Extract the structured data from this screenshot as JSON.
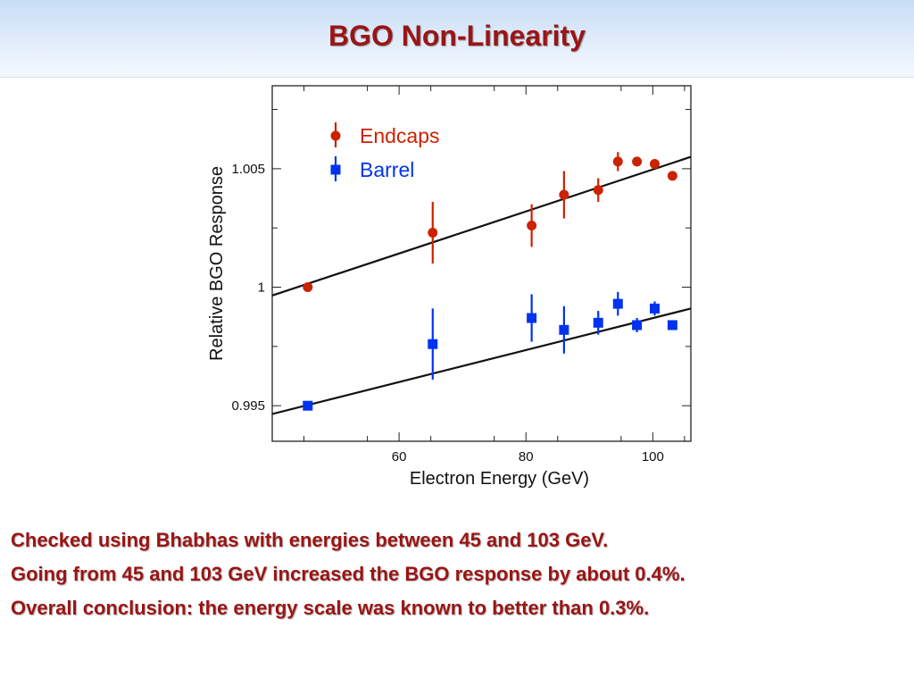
{
  "title": "BGO Non-Linearity",
  "bullets": [
    "Checked using Bhabhas with energies between 45 and 103 GeV.",
    "Going from 45 and 103 GeV increased the BGO response by about 0.4%.",
    "Overall conclusion: the energy scale was known to better than 0.3%."
  ],
  "colors": {
    "title": "#9a1515",
    "endcaps": "#cc2200",
    "barrel": "#0033ee"
  },
  "chart_data": {
    "type": "scatter",
    "xlabel": "Electron Energy (GeV)",
    "ylabel": "Relative BGO Response",
    "xlim": [
      40,
      106
    ],
    "ylim": [
      0.9935,
      1.0085
    ],
    "x_ticks": [
      60,
      80,
      100
    ],
    "y_ticks": [
      0.995,
      1,
      1.005
    ],
    "y_tick_labels": [
      "0.995",
      "1",
      "1.005"
    ],
    "legend_position": "top-left",
    "grid": false,
    "series": [
      {
        "name": "Endcaps",
        "marker": "circle",
        "points": [
          {
            "x": 45.6,
            "y": 1.0,
            "err": 0.0
          },
          {
            "x": 65.3,
            "y": 1.0023,
            "err": 0.0013
          },
          {
            "x": 80.9,
            "y": 1.0026,
            "err": 0.0009
          },
          {
            "x": 86.0,
            "y": 1.0039,
            "err": 0.001
          },
          {
            "x": 91.4,
            "y": 1.0041,
            "err": 0.0005
          },
          {
            "x": 94.5,
            "y": 1.0053,
            "err": 0.0004
          },
          {
            "x": 97.5,
            "y": 1.0053,
            "err": 0.0002
          },
          {
            "x": 100.3,
            "y": 1.0052,
            "err": 0.0002
          },
          {
            "x": 103.1,
            "y": 1.0047,
            "err": 0.0001
          }
        ],
        "fit": {
          "x": [
            40,
            106
          ],
          "y": [
            0.99965,
            1.0055
          ]
        }
      },
      {
        "name": "Barrel",
        "marker": "square",
        "points": [
          {
            "x": 45.6,
            "y": 0.995,
            "err": 0.0
          },
          {
            "x": 65.3,
            "y": 0.9976,
            "err": 0.0015
          },
          {
            "x": 80.9,
            "y": 0.9987,
            "err": 0.001
          },
          {
            "x": 86.0,
            "y": 0.9982,
            "err": 0.001
          },
          {
            "x": 91.4,
            "y": 0.9985,
            "err": 0.0005
          },
          {
            "x": 94.5,
            "y": 0.9993,
            "err": 0.0005
          },
          {
            "x": 97.5,
            "y": 0.9984,
            "err": 0.0003
          },
          {
            "x": 100.3,
            "y": 0.9991,
            "err": 0.0003
          },
          {
            "x": 103.1,
            "y": 0.9984,
            "err": 0.0002
          }
        ],
        "fit": {
          "x": [
            40,
            106
          ],
          "y": [
            0.99465,
            0.9991
          ]
        }
      }
    ]
  }
}
